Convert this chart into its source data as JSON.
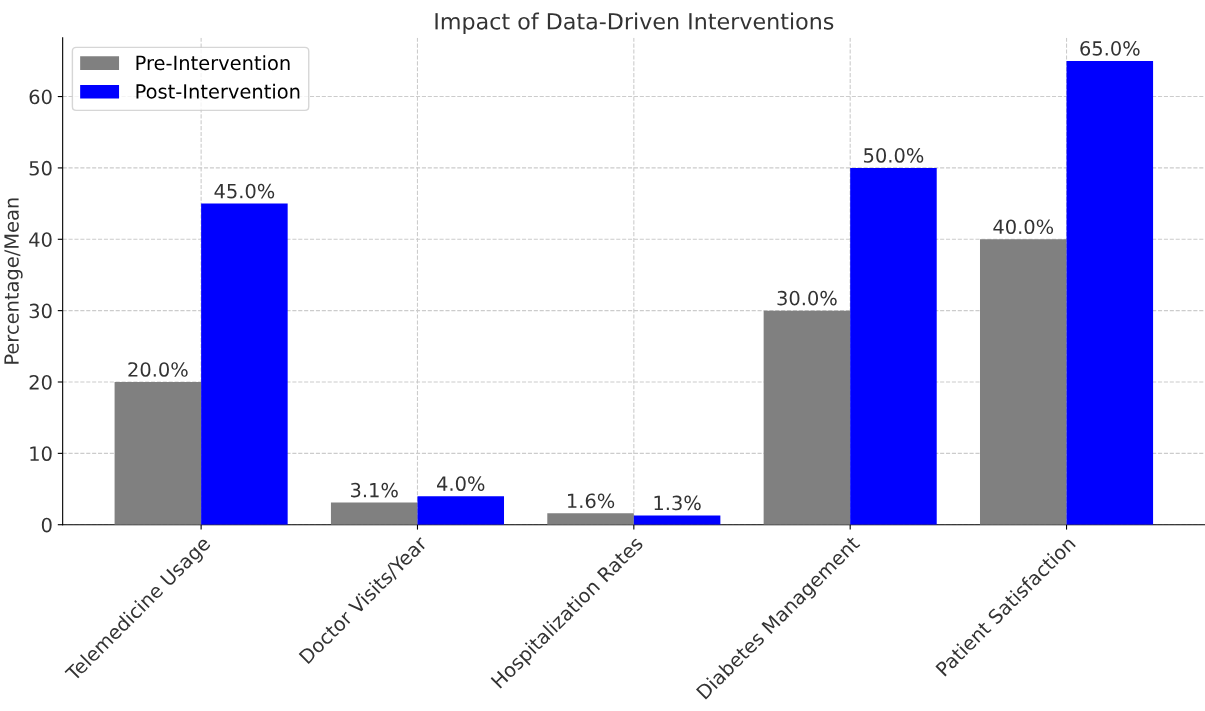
{
  "chart_data": {
    "type": "bar",
    "title": "Impact of Data-Driven Interventions",
    "ylabel": "Percentage/Mean",
    "categories": [
      "Telemedicine Usage",
      "Doctor Visits/Year",
      "Hospitalization Rates",
      "Diabetes Management",
      "Patient Satisfaction"
    ],
    "series": [
      {
        "name": "Pre-Intervention",
        "color": "#808080",
        "values": [
          20,
          3.1,
          1.6,
          30,
          40
        ],
        "value_labels": [
          "20.0%",
          "3.1%",
          "1.6%",
          "30.0%",
          "40.0%"
        ]
      },
      {
        "name": "Post-Intervention",
        "color": "#0000ff",
        "values": [
          45,
          4.0,
          1.3,
          50,
          65
        ],
        "value_labels": [
          "45.0%",
          "4.0%",
          "1.3%",
          "50.0%",
          "65.0%"
        ]
      }
    ],
    "ylim": [
      0,
      68.25
    ],
    "yticks": [
      0,
      10,
      20,
      30,
      40,
      50,
      60
    ],
    "grid": true,
    "legend": "top left"
  }
}
